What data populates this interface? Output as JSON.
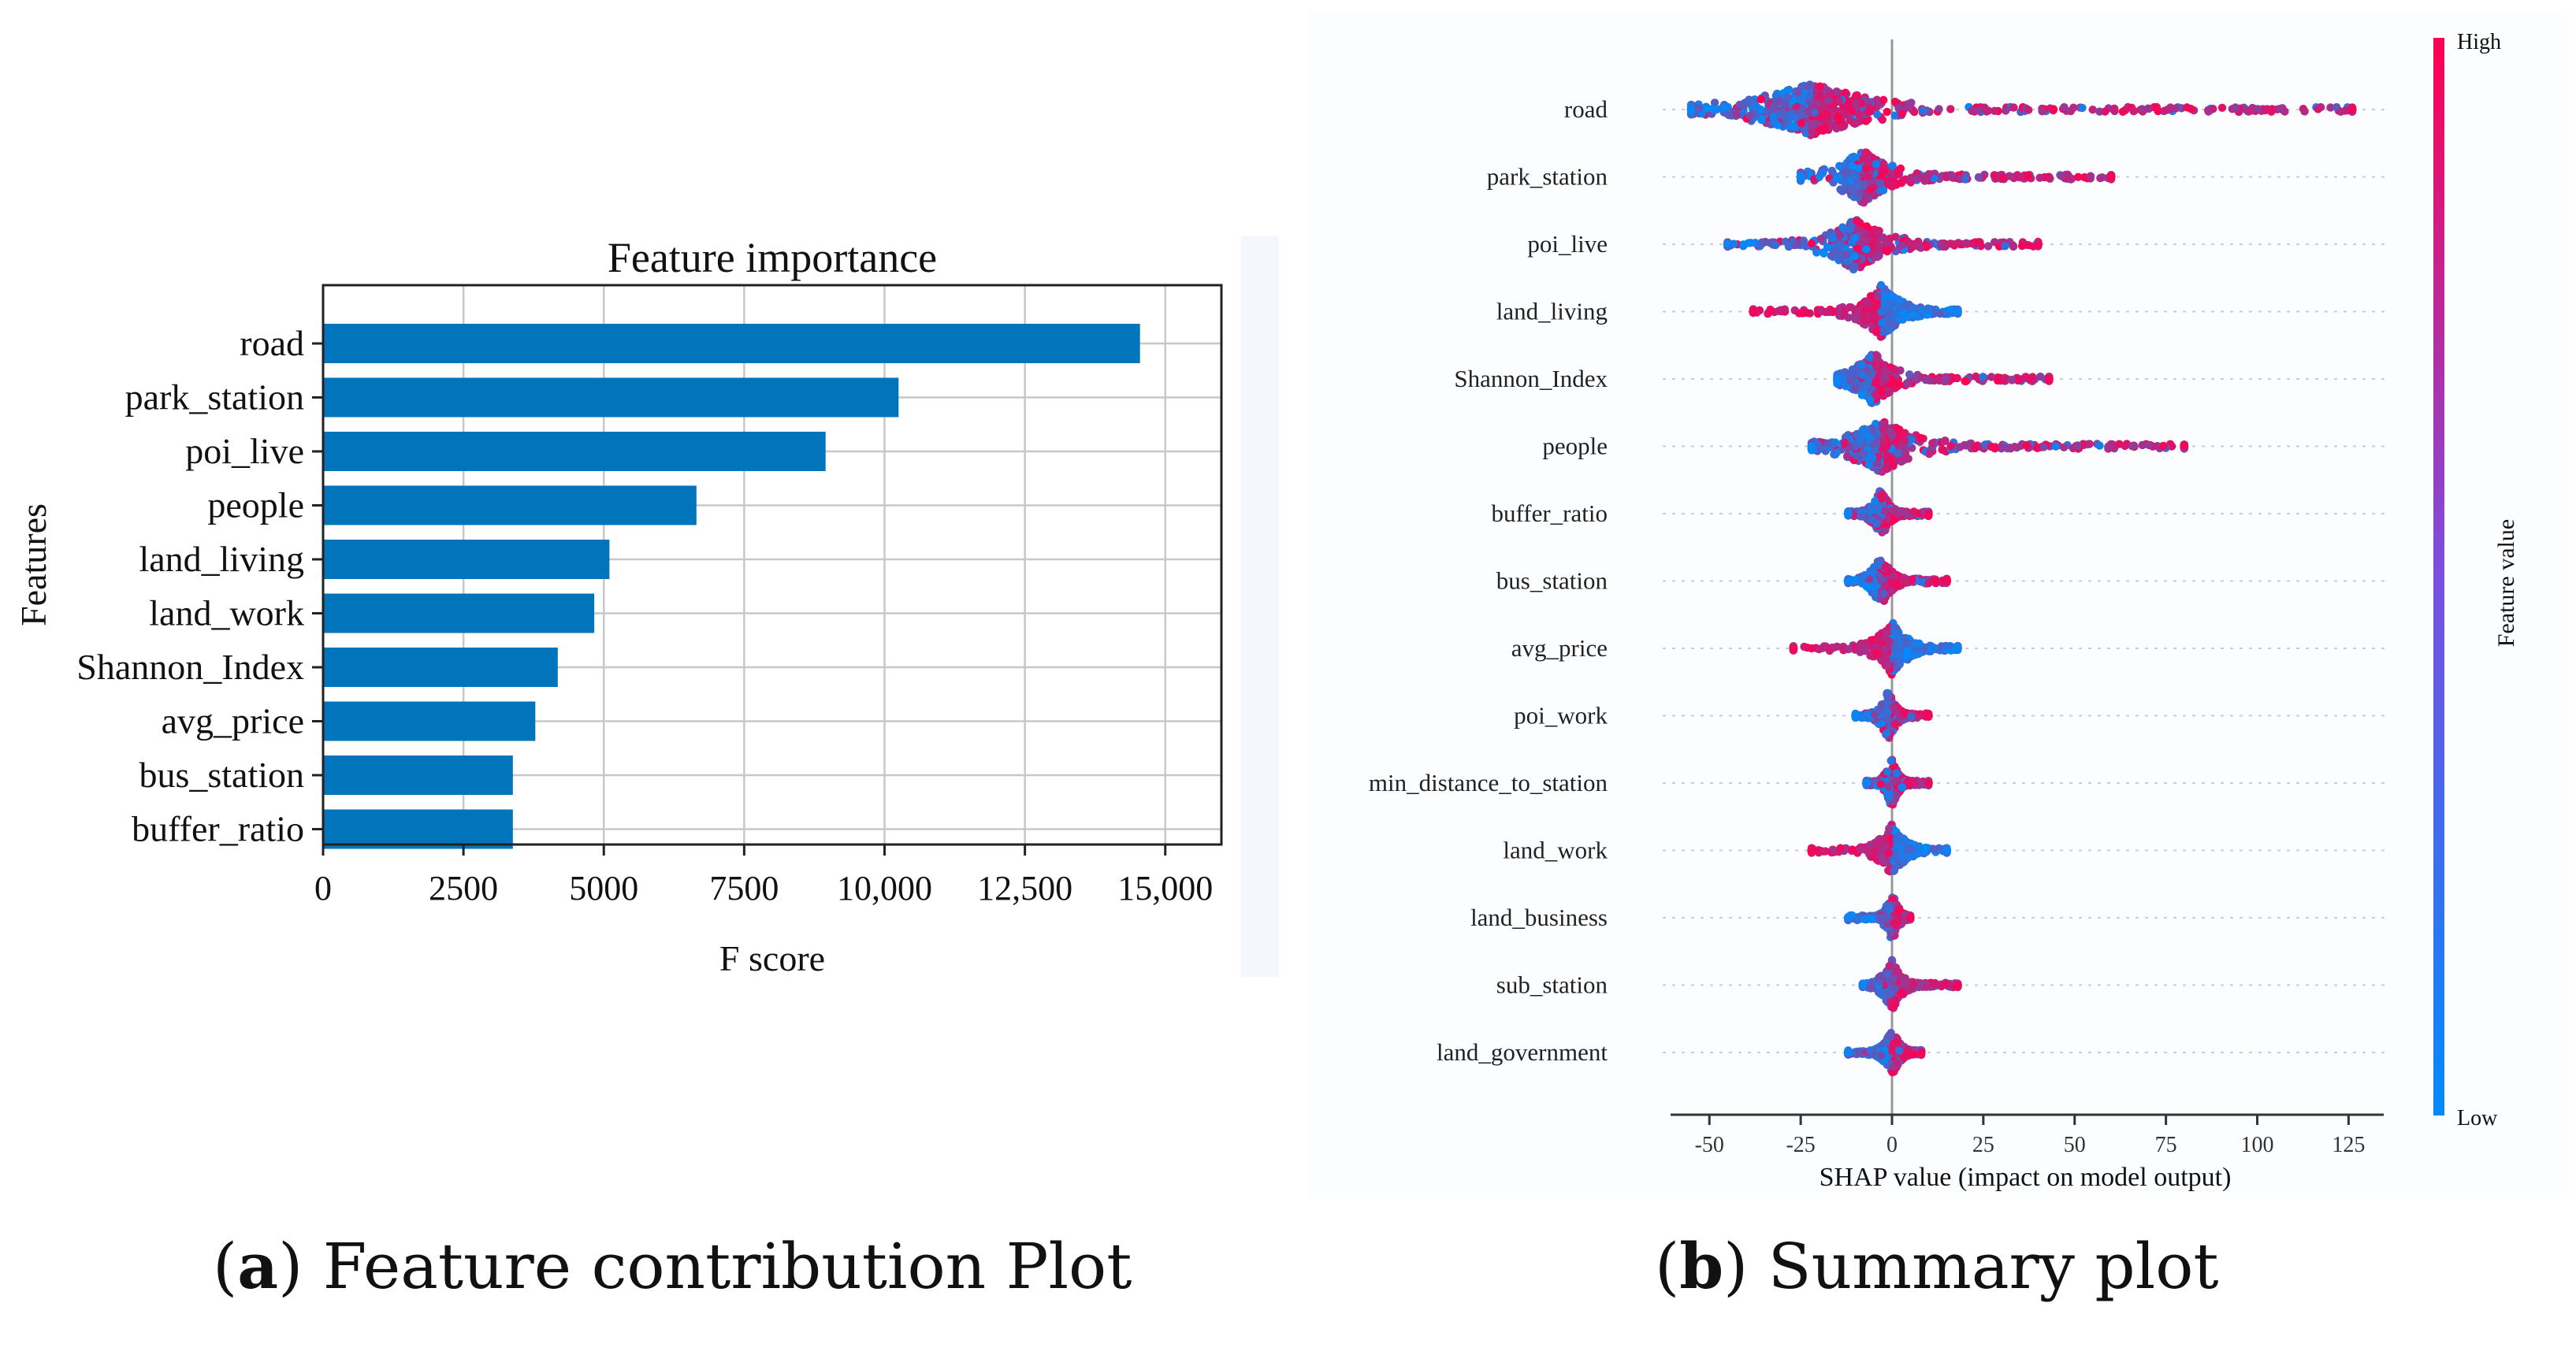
{
  "chart_data": [
    {
      "type": "bar",
      "orientation": "horizontal",
      "title": "Feature importance",
      "xlabel": "F score",
      "ylabel": "Features",
      "xlim": [
        0,
        16000
      ],
      "xticks": [
        0,
        2500,
        5000,
        7500,
        10000,
        12500,
        15000
      ],
      "xtick_labels": [
        "0",
        "2500",
        "5000",
        "7500",
        "10,000",
        "12,500",
        "15,000"
      ],
      "grid": true,
      "categories": [
        "road",
        "park_station",
        "poi_live",
        "people",
        "land_living",
        "land_work",
        "Shannon_Index",
        "avg_price",
        "bus_station",
        "buffer_ratio"
      ],
      "values": [
        14550,
        10250,
        8950,
        6650,
        5100,
        4830,
        4180,
        3780,
        3380,
        3380
      ],
      "bar_color": "#0075bb"
    },
    {
      "type": "scatter",
      "subtype": "shap-beeswarm",
      "xlabel": "SHAP value (impact on model output)",
      "xlim": [
        -63,
        135
      ],
      "xticks": [
        -50,
        -25,
        0,
        25,
        50,
        75,
        100,
        125
      ],
      "xtick_labels": [
        "-50",
        "-25",
        "0",
        "25",
        "50",
        "75",
        "100",
        "125"
      ],
      "colorbar": {
        "label": "Feature value",
        "high": "High",
        "low": "Low",
        "high_color": "#ff0052",
        "low_color": "#008bfb"
      },
      "features": [
        {
          "name": "road",
          "min": -55,
          "max": 126,
          "left": -55,
          "right": 126,
          "center": -22
        },
        {
          "name": "park_station",
          "min": -25,
          "max": 60,
          "left": -25,
          "right": 60,
          "center": -8
        },
        {
          "name": "poi_live",
          "min": -45,
          "max": 40,
          "left": -45,
          "right": 40,
          "center": -10
        },
        {
          "name": "land_living",
          "min": -38,
          "max": 18,
          "left": -38,
          "right": 18,
          "center": -3
        },
        {
          "name": "Shannon_Index",
          "min": -15,
          "max": 43,
          "left": -15,
          "right": 43,
          "center": -5
        },
        {
          "name": "people",
          "min": -22,
          "max": 80,
          "left": -22,
          "right": 80,
          "center": -3
        },
        {
          "name": "buffer_ratio",
          "min": -12,
          "max": 10,
          "left": -12,
          "right": 10,
          "center": -3
        },
        {
          "name": "bus_station",
          "min": -12,
          "max": 15,
          "left": -12,
          "right": 15,
          "center": -3
        },
        {
          "name": "avg_price",
          "min": -27,
          "max": 18,
          "left": -27,
          "right": 18,
          "center": 0
        },
        {
          "name": "poi_work",
          "min": -10,
          "max": 10,
          "left": -10,
          "right": 10,
          "center": -1
        },
        {
          "name": "min_distance_to_station",
          "min": -7,
          "max": 10,
          "left": -7,
          "right": 10,
          "center": 0
        },
        {
          "name": "land_work",
          "min": -22,
          "max": 15,
          "left": -22,
          "right": 15,
          "center": 0
        },
        {
          "name": "land_business",
          "min": -12,
          "max": 5,
          "left": -12,
          "right": 5,
          "center": 0
        },
        {
          "name": "sub_station",
          "min": -8,
          "max": 18,
          "left": -8,
          "right": 18,
          "center": 0
        },
        {
          "name": "land_government",
          "min": -12,
          "max": 8,
          "left": -12,
          "right": 8,
          "center": 0
        }
      ]
    }
  ],
  "captions": {
    "a_letter": "a",
    "a_text": " Feature contribution Plot",
    "b_letter": "b",
    "b_text": " Summary plot"
  }
}
